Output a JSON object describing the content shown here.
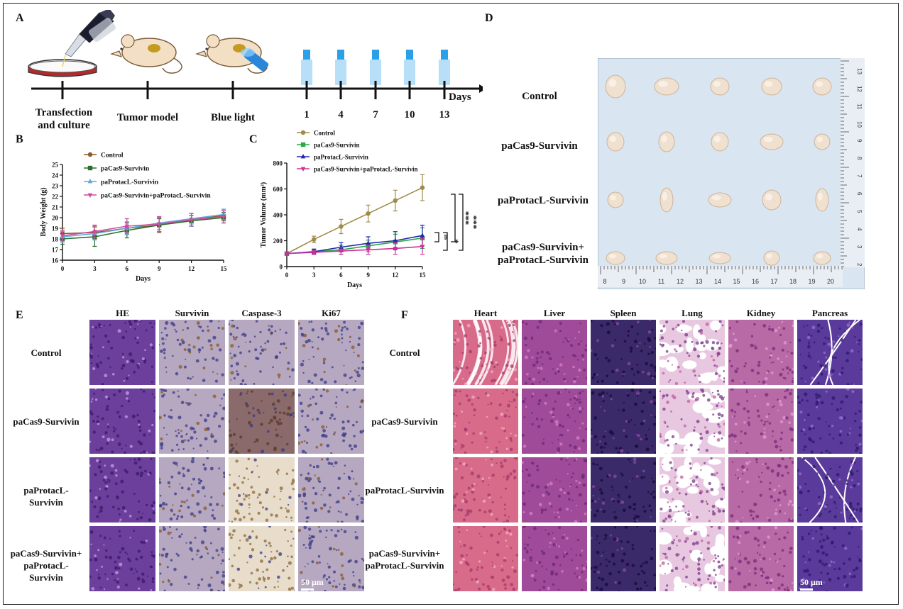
{
  "panels": {
    "a": "A",
    "b": "B",
    "c": "C",
    "d": "D",
    "e": "E",
    "f": "F"
  },
  "timeline": {
    "stage_labels": [
      "Transfection\nand culture",
      "Tumor model",
      "Blue light"
    ],
    "day_ticks": [
      "1",
      "4",
      "7",
      "10",
      "13"
    ],
    "axis_label": "Days"
  },
  "colors": {
    "control": "#a08a4a",
    "pacas9": "#2aa84a",
    "paprotacl": "#1f2aa8",
    "combo": "#d0309a",
    "control_b": "#8a5a2a",
    "pacas9_b": "#2c6e2c",
    "paprotacl_b": "#5aa8e0",
    "combo_b": "#d04aa0",
    "light_blue": "#2aa0e8",
    "he_purple": "#6a3a9a",
    "ihc_brown": "#8a6a3a"
  },
  "chart_data": [
    {
      "id": "B",
      "type": "line",
      "xlabel": "Days",
      "ylabel": "Body Weight (g)",
      "x": [
        0,
        3,
        6,
        9,
        12,
        15
      ],
      "xlim": [
        0,
        15
      ],
      "ylim": [
        16,
        25
      ],
      "yticks": [
        16,
        17,
        18,
        19,
        20,
        21,
        22,
        23,
        24,
        25
      ],
      "xticks": [
        0,
        3,
        6,
        9,
        12,
        15
      ],
      "legend": "top-left",
      "series": [
        {
          "name": "Control",
          "values": [
            18.5,
            18.6,
            19.0,
            19.3,
            19.8,
            20.2
          ],
          "err": [
            0.5,
            0.6,
            0.6,
            0.7,
            0.6,
            0.5
          ],
          "marker": "circle"
        },
        {
          "name": "paCas9-Survivin",
          "values": [
            18.0,
            18.2,
            18.8,
            19.3,
            19.7,
            20.0
          ],
          "err": [
            0.5,
            0.9,
            0.7,
            0.6,
            0.5,
            0.5
          ],
          "marker": "square"
        },
        {
          "name": "paProtacL-Survivin",
          "values": [
            18.2,
            18.5,
            19.0,
            19.5,
            19.9,
            20.3
          ],
          "err": [
            0.5,
            0.6,
            0.6,
            0.6,
            0.5,
            0.5
          ],
          "marker": "triangle"
        },
        {
          "name": "paCas9-Survivin+paProtacL-Survivin",
          "values": [
            18.3,
            18.7,
            19.2,
            19.4,
            19.8,
            20.1
          ],
          "err": [
            0.5,
            0.6,
            0.7,
            0.7,
            0.6,
            0.6
          ],
          "marker": "triangle-down"
        }
      ]
    },
    {
      "id": "C",
      "type": "line",
      "xlabel": "Days",
      "ylabel": "Tumor Volume (mm³)",
      "x": [
        0,
        3,
        6,
        9,
        12,
        15
      ],
      "xlim": [
        0,
        15
      ],
      "ylim": [
        0,
        800
      ],
      "yticks": [
        0,
        200,
        400,
        600,
        800
      ],
      "xticks": [
        0,
        3,
        6,
        9,
        12,
        15
      ],
      "legend": "top-left",
      "series": [
        {
          "name": "Control",
          "values": [
            100,
            210,
            310,
            410,
            510,
            610
          ],
          "err": [
            10,
            25,
            55,
            65,
            80,
            100
          ],
          "marker": "circle"
        },
        {
          "name": "paCas9-Survivin",
          "values": [
            100,
            115,
            130,
            160,
            190,
            220
          ],
          "err": [
            10,
            20,
            35,
            45,
            60,
            80
          ],
          "marker": "square"
        },
        {
          "name": "paProtacL-Survivin",
          "values": [
            100,
            115,
            150,
            180,
            200,
            240
          ],
          "err": [
            10,
            20,
            35,
            50,
            70,
            80
          ],
          "marker": "triangle"
        },
        {
          "name": "paCas9-Survivin+paProtacL-Survivin",
          "values": [
            100,
            110,
            120,
            130,
            140,
            155
          ],
          "err": [
            10,
            15,
            25,
            35,
            45,
            60
          ],
          "marker": "triangle-down"
        }
      ],
      "significance": [
        "***",
        "***",
        "ns",
        "*"
      ]
    }
  ],
  "panel_d": {
    "row_labels": [
      "Control",
      "paCas9-Survivin",
      "paProtacL-Survivin",
      "paCas9-Survivin+\npaProtacL-Survivin"
    ],
    "ruler_bottom": [
      "8",
      "9",
      "10",
      "11",
      "12",
      "13",
      "14",
      "15",
      "16",
      "17",
      "18",
      "19",
      "20"
    ],
    "ruler_side": [
      "13",
      "12",
      "11",
      "10",
      "9",
      "8",
      "7",
      "6",
      "5",
      "4",
      "3",
      "2"
    ]
  },
  "panel_e": {
    "columns": [
      "HE",
      "Survivin",
      "Caspase-3",
      "Ki67"
    ],
    "rows": [
      "Control",
      "paCas9-Survivin",
      "paProtacL-Survivin",
      "paCas9-Survivin+\npaProtacL-Survivin"
    ],
    "scale": "50 μm"
  },
  "panel_f": {
    "columns": [
      "Heart",
      "Liver",
      "Spleen",
      "Lung",
      "Kidney",
      "Pancreas"
    ],
    "rows": [
      "Control",
      "paCas9-Survivin",
      "paProtacL-Survivin",
      "paCas9-Survivin+\npaProtacL-Survivin"
    ],
    "scale": "50 μm"
  }
}
